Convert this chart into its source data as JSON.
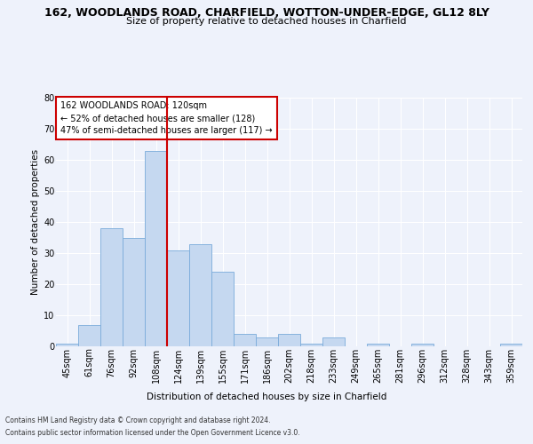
{
  "title_line1": "162, WOODLANDS ROAD, CHARFIELD, WOTTON-UNDER-EDGE, GL12 8LY",
  "title_line2": "Size of property relative to detached houses in Charfield",
  "xlabel": "Distribution of detached houses by size in Charfield",
  "ylabel": "Number of detached properties",
  "categories": [
    "45sqm",
    "61sqm",
    "76sqm",
    "92sqm",
    "108sqm",
    "124sqm",
    "139sqm",
    "155sqm",
    "171sqm",
    "186sqm",
    "202sqm",
    "218sqm",
    "233sqm",
    "249sqm",
    "265sqm",
    "281sqm",
    "296sqm",
    "312sqm",
    "328sqm",
    "343sqm",
    "359sqm"
  ],
  "values": [
    1,
    7,
    38,
    35,
    63,
    31,
    33,
    24,
    4,
    3,
    4,
    1,
    3,
    0,
    1,
    0,
    1,
    0,
    0,
    0,
    1
  ],
  "bar_color": "#c5d8f0",
  "bar_edge_color": "#7aabda",
  "vline_color": "#cc0000",
  "annotation_text": "162 WOODLANDS ROAD: 120sqm\n← 52% of detached houses are smaller (128)\n47% of semi-detached houses are larger (117) →",
  "annotation_box_color": "white",
  "annotation_box_edge_color": "#cc0000",
  "ylim": [
    0,
    80
  ],
  "yticks": [
    0,
    10,
    20,
    30,
    40,
    50,
    60,
    70,
    80
  ],
  "footer_line1": "Contains HM Land Registry data © Crown copyright and database right 2024.",
  "footer_line2": "Contains public sector information licensed under the Open Government Licence v3.0.",
  "background_color": "#eef2fb",
  "plot_bg_color": "#eef2fb",
  "grid_color": "#ffffff",
  "title1_fontsize": 9,
  "title2_fontsize": 8,
  "ylabel_fontsize": 7.5,
  "xlabel_fontsize": 7.5,
  "tick_fontsize": 7,
  "ann_fontsize": 7,
  "footer_fontsize": 5.5
}
